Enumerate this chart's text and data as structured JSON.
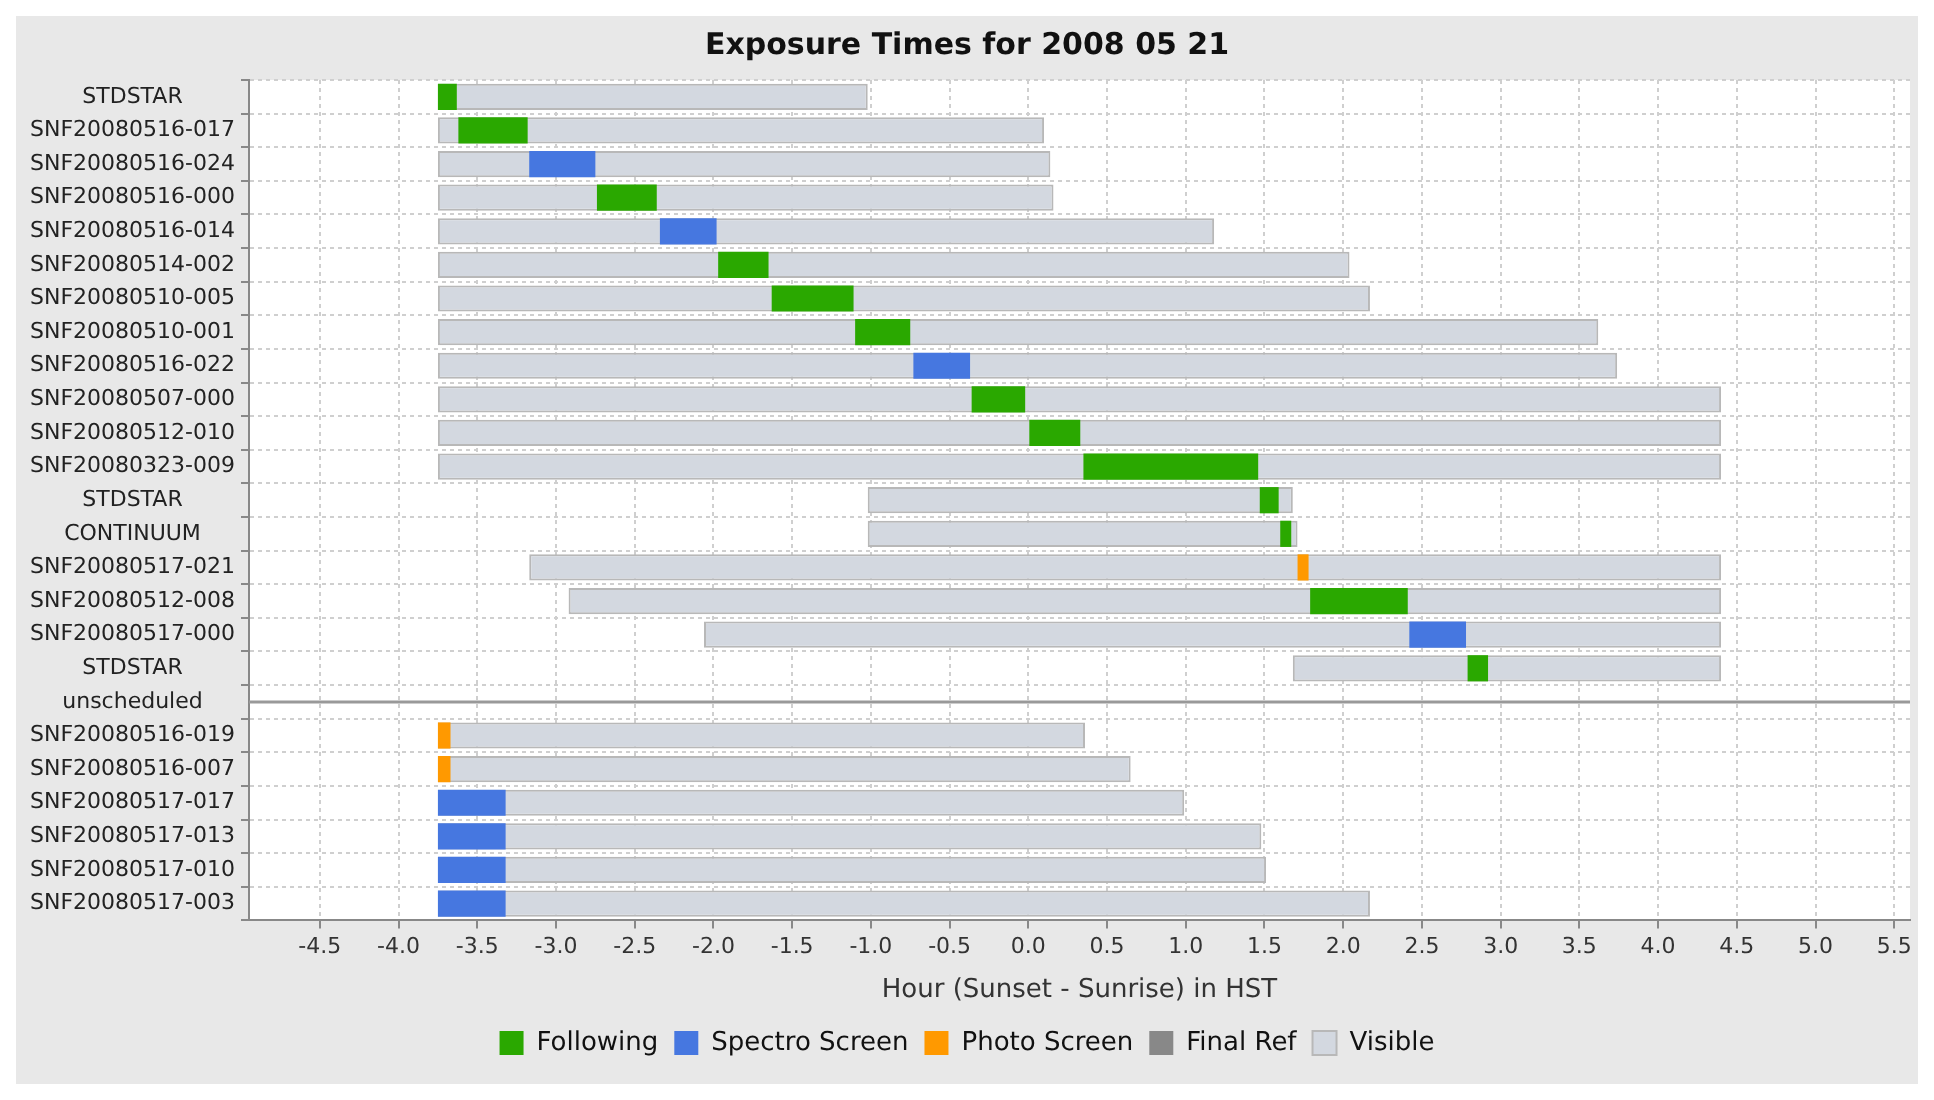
{
  "chart_data": {
    "type": "bar",
    "orientation": "horizontal",
    "title": "Exposure Times for 2008 05 21",
    "xlabel": "Hour (Sunset - Sunrise) in HST",
    "categories": [
      "STDSTAR",
      "SNF20080516-017",
      "SNF20080516-024",
      "SNF20080516-000",
      "SNF20080516-014",
      "SNF20080514-002",
      "SNF20080510-005",
      "SNF20080510-001",
      "SNF20080516-022",
      "SNF20080507-000",
      "SNF20080512-010",
      "SNF20080323-009",
      "STDSTAR",
      "CONTINUUM",
      "SNF20080517-021",
      "SNF20080512-008",
      "SNF20080517-000",
      "STDSTAR",
      "unscheduled",
      "SNF20080516-019",
      "SNF20080516-007",
      "SNF20080517-017",
      "SNF20080517-013",
      "SNF20080517-010",
      "SNF20080517-003"
    ],
    "series": [
      {
        "name": "Following",
        "color": "#2aa800",
        "base": [
          -3.75,
          -3.62,
          null,
          -2.74,
          null,
          -1.97,
          -1.63,
          -1.1,
          null,
          -0.36,
          0,
          0.35,
          1.47,
          1.6,
          null,
          1.79,
          null,
          2.79,
          null,
          null,
          null,
          null,
          null,
          null,
          null
        ],
        "values": [
          0.12,
          0.44,
          null,
          0.38,
          null,
          0.32,
          0.52,
          0.35,
          null,
          0.34,
          0.33,
          1.11,
          0.12,
          0.07,
          null,
          0.62,
          null,
          0.13,
          null,
          null,
          null,
          null,
          null,
          null,
          null
        ]
      },
      {
        "name": "Spectro Screen",
        "color": "#4677e0",
        "base": [
          null,
          null,
          -3.17,
          null,
          -2.34,
          null,
          null,
          null,
          -0.73,
          null,
          null,
          null,
          null,
          null,
          null,
          null,
          2.42,
          null,
          null,
          null,
          null,
          -3.75,
          -3.75,
          -3.75,
          -3.75
        ],
        "values": [
          null,
          null,
          0.42,
          null,
          0.36,
          null,
          null,
          null,
          0.36,
          null,
          null,
          null,
          null,
          null,
          null,
          null,
          0.36,
          null,
          null,
          null,
          null,
          0.43,
          0.43,
          0.43,
          0.43
        ]
      },
      {
        "name": "Photo Screen",
        "color": "#ff9900",
        "base": [
          null,
          null,
          null,
          null,
          null,
          null,
          null,
          null,
          null,
          null,
          null,
          null,
          null,
          null,
          1.71,
          null,
          null,
          null,
          null,
          -3.75,
          -3.75,
          null,
          null,
          null,
          null
        ],
        "values": [
          null,
          null,
          null,
          null,
          null,
          null,
          null,
          null,
          null,
          null,
          null,
          null,
          null,
          null,
          0.07,
          null,
          null,
          null,
          null,
          0.08,
          0.08,
          null,
          null,
          null,
          null
        ]
      },
      {
        "name": "Final Ref",
        "color": "#888888",
        "values": [
          null,
          null,
          null,
          null,
          null,
          null,
          null,
          null,
          null,
          null,
          null,
          null,
          null,
          null,
          null,
          null,
          null,
          null,
          null,
          null,
          null,
          null,
          null,
          null,
          null
        ]
      },
      {
        "name": "Visible",
        "color": "#d3d8e0",
        "base": [
          -3.75,
          -3.75,
          -3.75,
          -3.75,
          -3.75,
          -3.75,
          -3.75,
          -3.75,
          -3.75,
          -3.75,
          -3.75,
          -3.75,
          -1.02,
          -1.02,
          -3.17,
          -2.92,
          -2.06,
          1.68,
          null,
          -3.75,
          -3.75,
          -3.75,
          -3.75,
          -3.75,
          -3.75
        ],
        "values": [
          2.73,
          3.85,
          3.89,
          3.91,
          4.93,
          5.79,
          5.92,
          7.37,
          7.49,
          8.15,
          8.15,
          8.15,
          2.7,
          2.73,
          7.57,
          7.32,
          6.46,
          2.72,
          null,
          4.11,
          4.4,
          4.74,
          5.23,
          5.26,
          5.92
        ]
      }
    ],
    "xlim": [
      -4.95,
      5.6
    ],
    "xticks": [
      -4.5,
      {
        "value": -4,
        "label": "-4.0"
      },
      -3.5,
      {
        "value": -3,
        "label": "-3.0"
      },
      -2.5,
      {
        "value": -2,
        "label": "-2.0"
      },
      -1.5,
      {
        "value": -1,
        "label": "-1.0"
      },
      -0.5,
      {
        "value": 0,
        "label": "0.0"
      },
      0.5,
      {
        "value": 1,
        "label": "1.0"
      },
      1.5,
      {
        "value": 2,
        "label": "2.0"
      },
      2.5,
      {
        "value": 3,
        "label": "3.0"
      },
      3.5,
      {
        "value": 4,
        "label": "4.0"
      },
      4.5,
      {
        "value": 5,
        "label": "5.0"
      },
      5.5
    ],
    "ref_lines": [
      {
        "axis": "y",
        "value": "unscheduled",
        "color": "#999999"
      }
    ],
    "grid": true,
    "legend": "bottom"
  }
}
